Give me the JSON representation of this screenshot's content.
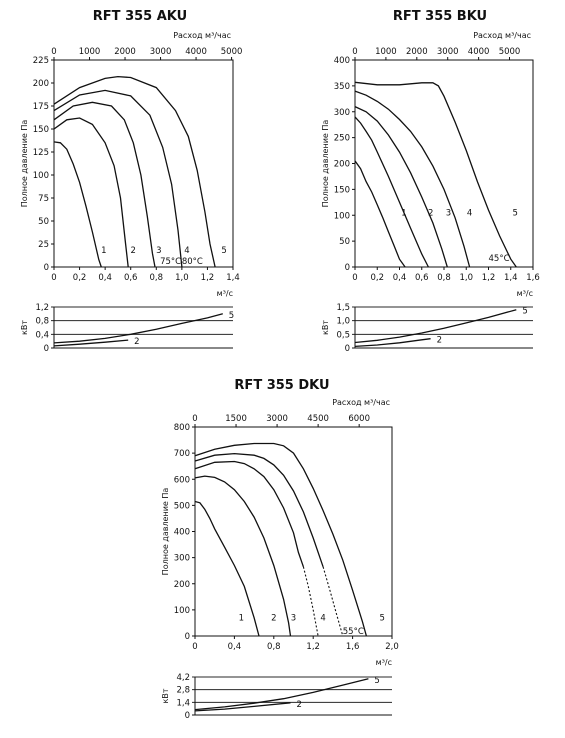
{
  "chart_data": [
    {
      "type": "line",
      "title": "RFT 355 AKU",
      "ylabel": "Полное давление Па",
      "xlabel": "м³/с",
      "x2label": "Расход м³/час",
      "ylim": [
        0,
        225
      ],
      "yticks": [
        "0",
        "25",
        "50",
        "75",
        "100",
        "125",
        "150",
        "175",
        "200",
        "225"
      ],
      "xlim": [
        0,
        1.4
      ],
      "xticks": [
        "0",
        "0,2",
        "0,4",
        "0,6",
        "0,8",
        "1,0",
        "1,2",
        "1,4"
      ],
      "x2lim": [
        0,
        5040
      ],
      "x2ticks": [
        "0",
        "1000",
        "2000",
        "3000",
        "4000",
        "5000"
      ],
      "series": [
        {
          "name": "1",
          "x": [
            0,
            0.05,
            0.1,
            0.15,
            0.2,
            0.25,
            0.3,
            0.35,
            0.37
          ],
          "y": [
            136,
            135,
            128,
            112,
            92,
            66,
            38,
            8,
            0
          ]
        },
        {
          "name": "2",
          "x": [
            0,
            0.1,
            0.2,
            0.3,
            0.4,
            0.47,
            0.52,
            0.56,
            0.58
          ],
          "y": [
            150,
            160,
            162,
            155,
            135,
            110,
            75,
            25,
            0
          ]
        },
        {
          "name": "3",
          "x": [
            0,
            0.15,
            0.3,
            0.45,
            0.55,
            0.62,
            0.68,
            0.73,
            0.77,
            0.79
          ],
          "y": [
            160,
            175,
            179,
            175,
            160,
            135,
            100,
            55,
            15,
            0
          ]
        },
        {
          "name": "4",
          "x": [
            0,
            0.2,
            0.4,
            0.6,
            0.75,
            0.85,
            0.92,
            0.97,
            1.0
          ],
          "y": [
            170,
            187,
            192,
            186,
            165,
            130,
            90,
            40,
            0
          ]
        },
        {
          "name": "5",
          "x": [
            0,
            0.2,
            0.4,
            0.5,
            0.6,
            0.8,
            0.95,
            1.05,
            1.12,
            1.18,
            1.22,
            1.26
          ],
          "y": [
            177,
            195,
            205,
            207,
            206,
            195,
            170,
            142,
            105,
            60,
            25,
            0
          ]
        }
      ],
      "curve_labels": [
        {
          "text": "1",
          "x": 0.39,
          "y": 15
        },
        {
          "text": "2",
          "x": 0.62,
          "y": 15
        },
        {
          "text": "3",
          "x": 0.82,
          "y": 15
        },
        {
          "text": "4",
          "x": 1.04,
          "y": 15
        },
        {
          "text": "5",
          "x": 1.33,
          "y": 15
        }
      ],
      "annotations": [
        {
          "text": "75°C",
          "x": 0.83,
          "y": 3
        },
        {
          "text": "80°C",
          "x": 1.0,
          "y": 3
        }
      ],
      "power": {
        "ylabel": "кВт",
        "ylim": [
          0,
          1.2
        ],
        "yticks": [
          "0",
          "0,4",
          "0,8",
          "1,2"
        ],
        "series": [
          {
            "name": "5",
            "x": [
              0,
              0.2,
              0.4,
              0.6,
              0.8,
              1.0,
              1.2,
              1.32
            ],
            "y": [
              0.15,
              0.2,
              0.28,
              0.4,
              0.55,
              0.72,
              0.88,
              1.0
            ]
          },
          {
            "name": "2",
            "x": [
              0,
              0.2,
              0.4,
              0.58
            ],
            "y": [
              0.06,
              0.11,
              0.17,
              0.23
            ]
          }
        ]
      }
    },
    {
      "type": "line",
      "title": "RFT 355 BKU",
      "ylabel": "Полное давление Па",
      "xlabel": "м³/с",
      "x2label": "Расход м³/час",
      "ylim": [
        0,
        400
      ],
      "yticks": [
        "0",
        "50",
        "100",
        "150",
        "200",
        "250",
        "300",
        "350",
        "400"
      ],
      "xlim": [
        0,
        1.6
      ],
      "xticks": [
        "0",
        "0,2",
        "0,4",
        "0,6",
        "0,8",
        "1,0",
        "1,2",
        "1,4",
        "1,6"
      ],
      "x2lim": [
        0,
        5760
      ],
      "x2ticks": [
        "0",
        "1000",
        "2000",
        "3000",
        "4000",
        "5000"
      ],
      "series": [
        {
          "name": "1",
          "x": [
            0,
            0.05,
            0.1,
            0.15,
            0.2,
            0.25,
            0.3,
            0.35,
            0.4,
            0.45
          ],
          "y": [
            205,
            190,
            165,
            145,
            120,
            95,
            68,
            42,
            15,
            0
          ]
        },
        {
          "name": "2",
          "x": [
            0,
            0.05,
            0.1,
            0.15,
            0.2,
            0.3,
            0.4,
            0.5,
            0.6,
            0.66
          ],
          "y": [
            290,
            278,
            262,
            245,
            222,
            175,
            125,
            75,
            25,
            0
          ]
        },
        {
          "name": "3",
          "x": [
            0,
            0.1,
            0.2,
            0.3,
            0.4,
            0.5,
            0.6,
            0.7,
            0.78,
            0.83
          ],
          "y": [
            310,
            300,
            282,
            255,
            222,
            182,
            135,
            85,
            35,
            0
          ]
        },
        {
          "name": "4",
          "x": [
            0,
            0.1,
            0.2,
            0.3,
            0.4,
            0.5,
            0.6,
            0.7,
            0.8,
            0.9,
            0.98,
            1.03
          ],
          "y": [
            340,
            332,
            320,
            305,
            285,
            262,
            232,
            195,
            150,
            95,
            40,
            0
          ]
        },
        {
          "name": "5",
          "x": [
            0,
            0.2,
            0.4,
            0.6,
            0.7,
            0.75,
            0.8,
            0.9,
            1.0,
            1.1,
            1.2,
            1.3,
            1.4,
            1.45
          ],
          "y": [
            357,
            352,
            352,
            356,
            356,
            350,
            330,
            280,
            225,
            165,
            110,
            60,
            15,
            0
          ]
        }
      ],
      "curve_labels": [
        {
          "text": "1",
          "x": 0.44,
          "y": 100
        },
        {
          "text": "2",
          "x": 0.68,
          "y": 100
        },
        {
          "text": "3",
          "x": 0.84,
          "y": 100
        },
        {
          "text": "4",
          "x": 1.03,
          "y": 100
        },
        {
          "text": "5",
          "x": 1.44,
          "y": 100
        }
      ],
      "annotations": [
        {
          "text": "45°C",
          "x": 1.2,
          "y": 12
        }
      ],
      "power": {
        "ylabel": "кВт",
        "ylim": [
          0,
          1.5
        ],
        "yticks": [
          "0",
          "0,5",
          "1,0",
          "1,5"
        ],
        "series": [
          {
            "name": "5",
            "x": [
              0,
              0.2,
              0.4,
              0.6,
              0.8,
              1.0,
              1.2,
              1.45
            ],
            "y": [
              0.2,
              0.28,
              0.4,
              0.55,
              0.72,
              0.92,
              1.12,
              1.4
            ]
          },
          {
            "name": "2",
            "x": [
              0,
              0.2,
              0.4,
              0.6,
              0.68
            ],
            "y": [
              0.06,
              0.11,
              0.19,
              0.3,
              0.34
            ]
          }
        ]
      }
    },
    {
      "type": "line",
      "title": "RFT 355 DKU",
      "ylabel": "Полное давление Па",
      "xlabel": "м³/с",
      "x2label": "Расход м³/час",
      "ylim": [
        0,
        800
      ],
      "yticks": [
        "0",
        "100",
        "200",
        "300",
        "400",
        "500",
        "600",
        "700",
        "800"
      ],
      "xlim": [
        0,
        2.0
      ],
      "xticks": [
        "0",
        "0,4",
        "0,8",
        "1,2",
        "1,6",
        "2,0"
      ],
      "x2lim": [
        0,
        7200
      ],
      "x2ticks": [
        "0",
        "1500",
        "3000",
        "4500",
        "6000"
      ],
      "series": [
        {
          "name": "1",
          "x": [
            0,
            0.05,
            0.1,
            0.15,
            0.2,
            0.3,
            0.4,
            0.5,
            0.6,
            0.65
          ],
          "y": [
            515,
            510,
            485,
            450,
            410,
            340,
            270,
            190,
            70,
            0
          ]
        },
        {
          "name": "2",
          "x": [
            0,
            0.1,
            0.2,
            0.3,
            0.4,
            0.5,
            0.6,
            0.7,
            0.8,
            0.9,
            0.95,
            0.97
          ],
          "y": [
            605,
            612,
            607,
            590,
            560,
            515,
            455,
            375,
            270,
            140,
            50,
            0
          ]
        },
        {
          "name": "3",
          "x": [
            0,
            0.2,
            0.4,
            0.5,
            0.6,
            0.7,
            0.8,
            0.9,
            1.0,
            1.05,
            1.1
          ],
          "y": [
            640,
            665,
            668,
            660,
            640,
            610,
            560,
            490,
            395,
            320,
            265
          ]
        },
        {
          "name": "3-extension",
          "x": [
            1.1,
            1.15,
            1.2,
            1.25
          ],
          "y": [
            265,
            190,
            100,
            0
          ]
        },
        {
          "name": "4",
          "x": [
            0,
            0.2,
            0.4,
            0.6,
            0.7,
            0.8,
            0.9,
            1.0,
            1.1,
            1.2,
            1.3
          ],
          "y": [
            670,
            692,
            698,
            692,
            680,
            655,
            615,
            555,
            475,
            375,
            265
          ]
        },
        {
          "name": "4-extension",
          "x": [
            1.3,
            1.37,
            1.44,
            1.5
          ],
          "y": [
            265,
            175,
            80,
            0
          ]
        },
        {
          "name": "5",
          "x": [
            0,
            0.2,
            0.4,
            0.6,
            0.8,
            0.9,
            1.0,
            1.1,
            1.2,
            1.3,
            1.4,
            1.5,
            1.6,
            1.7,
            1.74
          ],
          "y": [
            690,
            715,
            730,
            737,
            737,
            728,
            700,
            640,
            565,
            480,
            390,
            290,
            175,
            55,
            0
          ]
        }
      ],
      "curve_labels": [
        {
          "text": "1",
          "x": 0.47,
          "y": 60
        },
        {
          "text": "2",
          "x": 0.8,
          "y": 60
        },
        {
          "text": "3",
          "x": 1.0,
          "y": 60
        },
        {
          "text": "4",
          "x": 1.3,
          "y": 60
        },
        {
          "text": "5",
          "x": 1.9,
          "y": 60
        }
      ],
      "annotations": [
        {
          "text": "55°C",
          "x": 1.5,
          "y": 8
        }
      ],
      "power": {
        "ylabel": "кВт",
        "ylim": [
          0,
          4.2
        ],
        "yticks": [
          "0",
          "1,4",
          "2,8",
          "4,2"
        ],
        "series": [
          {
            "name": "5",
            "x": [
              0,
              0.3,
              0.6,
              0.9,
              1.2,
              1.5,
              1.76
            ],
            "y": [
              0.6,
              0.9,
              1.3,
              1.8,
              2.5,
              3.3,
              4.0
            ]
          },
          {
            "name": "2",
            "x": [
              0,
              0.3,
              0.6,
              0.97
            ],
            "y": [
              0.45,
              0.65,
              0.95,
              1.35
            ]
          }
        ]
      }
    }
  ]
}
